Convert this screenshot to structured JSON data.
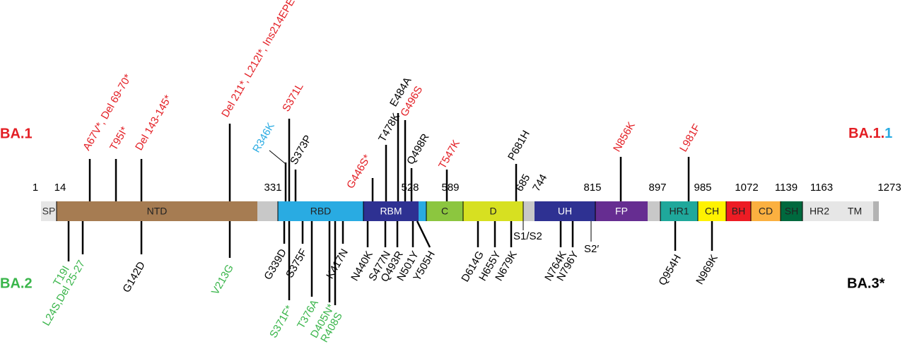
{
  "variants": {
    "ba1": {
      "label": "BA.1",
      "color": "#e31e24"
    },
    "ba1_1": {
      "label": "BA.1.",
      "suffix": "1",
      "color": "#e31e24",
      "suffix_color": "#29abe2"
    },
    "ba2": {
      "label": "BA.2",
      "color": "#39b54a"
    },
    "ba3": {
      "label": "BA.3*",
      "color": "#000000"
    }
  },
  "positions": [
    1,
    14,
    331,
    528,
    589,
    685,
    744,
    815,
    897,
    985,
    1072,
    1139,
    1163,
    1273
  ],
  "domains": [
    {
      "label": "SP",
      "color": "#e6e6e6"
    },
    {
      "label": "NTD",
      "color": "#a67c52"
    },
    {
      "label": "RBD",
      "color": "#29abe2"
    },
    {
      "label": "RBM",
      "color": "#2e3192"
    },
    {
      "label": "C",
      "color": "#8cc63f"
    },
    {
      "label": "D",
      "color": "#d7e021"
    },
    {
      "label": "UH",
      "color": "#2e3192"
    },
    {
      "label": "FP",
      "color": "#662d91"
    },
    {
      "label": "HR1",
      "color": "#1fa89b"
    },
    {
      "label": "CH",
      "color": "#fff200"
    },
    {
      "label": "BH",
      "color": "#ed1c24"
    },
    {
      "label": "CD",
      "color": "#fbb040"
    },
    {
      "label": "SH",
      "color": "#00693e"
    },
    {
      "label": "HR2",
      "color": "#e6e6e6"
    },
    {
      "label": "TM",
      "color": "#e6e6e6"
    }
  ],
  "mutations_top": [
    {
      "label": "A67V*, Del 69-70*",
      "color": "#e31e24"
    },
    {
      "label": "T95I*",
      "color": "#e31e24"
    },
    {
      "label": "Del 143-145*",
      "color": "#e31e24"
    },
    {
      "label": "Del 211*, L212I*, Ins214EPE",
      "color": "#e31e24"
    },
    {
      "label": "R346K",
      "color": "#29abe2"
    },
    {
      "label": "S371L",
      "color": "#e31e24"
    },
    {
      "label": "S373P",
      "color": "#000000"
    },
    {
      "label": "G446S*",
      "color": "#e31e24"
    },
    {
      "label": "T478K",
      "color": "#000000"
    },
    {
      "label": "E484A",
      "color": "#000000"
    },
    {
      "label": "G496S",
      "color": "#e31e24"
    },
    {
      "label": "Q498R",
      "color": "#000000"
    },
    {
      "label": "T547K",
      "color": "#e31e24"
    },
    {
      "label": "P681H",
      "color": "#000000"
    },
    {
      "label": "N856K",
      "color": "#e31e24"
    },
    {
      "label": "L981F",
      "color": "#e31e24"
    }
  ],
  "mutations_bottom": [
    {
      "label": "T19I",
      "color": "#39b54a"
    },
    {
      "label": "L24S,Del 25-27",
      "color": "#39b54a"
    },
    {
      "label": "G142D",
      "color": "#000000"
    },
    {
      "label": "V213G",
      "color": "#39b54a"
    },
    {
      "label": "G339D",
      "color": "#000000"
    },
    {
      "label": "S371F*",
      "color": "#39b54a"
    },
    {
      "label": "S375F",
      "color": "#000000"
    },
    {
      "label": "T376A",
      "color": "#39b54a"
    },
    {
      "label": "D405N*",
      "color": "#39b54a"
    },
    {
      "label": "R408S",
      "color": "#39b54a"
    },
    {
      "label": "K417N",
      "color": "#000000"
    },
    {
      "label": "N440K",
      "color": "#000000"
    },
    {
      "label": "S477N",
      "color": "#000000"
    },
    {
      "label": "Q493R",
      "color": "#000000"
    },
    {
      "label": "N501Y",
      "color": "#000000"
    },
    {
      "label": "Y505H",
      "color": "#000000"
    },
    {
      "label": "D614G",
      "color": "#000000"
    },
    {
      "label": "H655Y",
      "color": "#000000"
    },
    {
      "label": "N679K",
      "color": "#000000"
    },
    {
      "label": "N764K",
      "color": "#000000"
    },
    {
      "label": "N796Y",
      "color": "#000000"
    },
    {
      "label": "Q954H",
      "color": "#000000"
    },
    {
      "label": "N969K",
      "color": "#000000"
    }
  ],
  "cleavage_sites": [
    "S1/S2",
    "S2′"
  ]
}
